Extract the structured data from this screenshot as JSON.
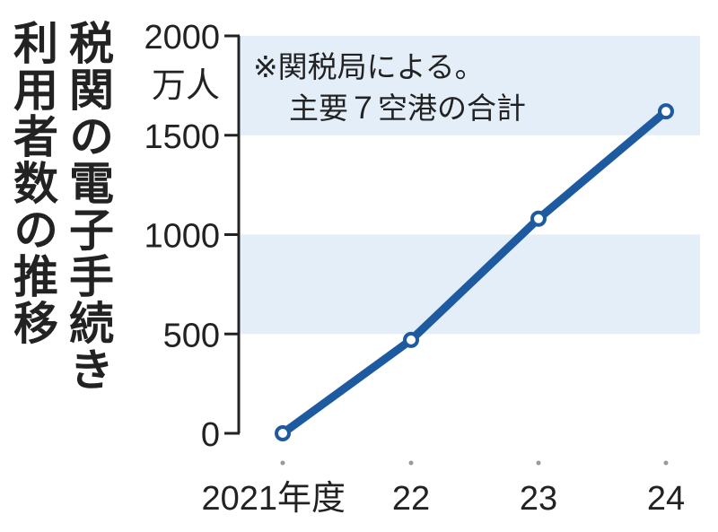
{
  "chart_data": {
    "type": "line",
    "title_lines": [
      "税関の電子手続き",
      "利用者数の推移"
    ],
    "unit": "万人",
    "note_lines": [
      "※関税局による。",
      "主要７空港の合計"
    ],
    "categories": [
      "2021年度",
      "22",
      "23",
      "24"
    ],
    "series": [
      {
        "values": [
          0,
          470,
          1080,
          1620
        ]
      }
    ],
    "ylim": [
      0,
      2000
    ],
    "yticks": [
      "0",
      "500",
      "1000",
      "1500",
      "2000"
    ],
    "ytick_values": [
      0,
      500,
      1000,
      1500,
      2000
    ],
    "bands": [
      [
        500,
        1000
      ],
      [
        1500,
        2000
      ]
    ],
    "colors": {
      "line": "#1d5aa0",
      "band": "#e3eef9",
      "text": "#222222"
    }
  }
}
